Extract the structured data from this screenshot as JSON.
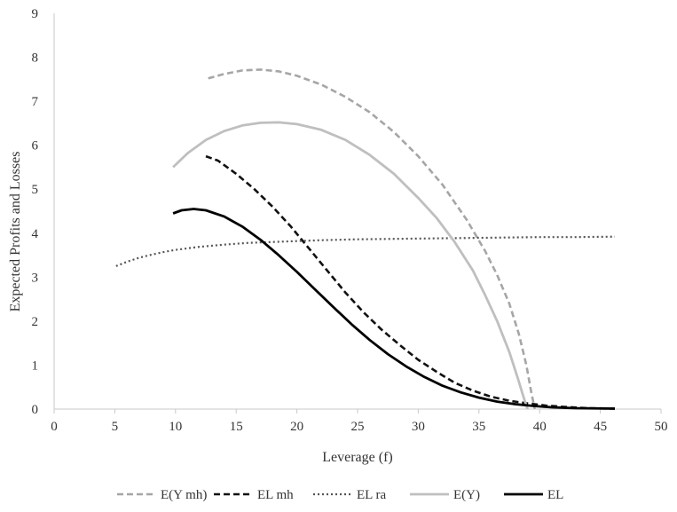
{
  "chart_data": {
    "type": "line",
    "title": "",
    "xlabel": "Leverage (f)",
    "ylabel": "Expected Profits and Losses",
    "xlim": [
      0,
      50
    ],
    "ylim": [
      0,
      9
    ],
    "xticks": [
      0,
      5,
      10,
      15,
      20,
      25,
      30,
      35,
      40,
      45,
      50
    ],
    "yticks": [
      0,
      1,
      2,
      3,
      4,
      5,
      6,
      7,
      8,
      9
    ],
    "grid": false,
    "legend_position": "bottom",
    "series": [
      {
        "name": "E(Y mh)",
        "color": "#a6a6a6",
        "style": "dashed",
        "points": [
          [
            12.7,
            7.52
          ],
          [
            14,
            7.62
          ],
          [
            15.5,
            7.7
          ],
          [
            17,
            7.72
          ],
          [
            18.5,
            7.68
          ],
          [
            20,
            7.58
          ],
          [
            22,
            7.38
          ],
          [
            24,
            7.1
          ],
          [
            26,
            6.75
          ],
          [
            28,
            6.3
          ],
          [
            30,
            5.75
          ],
          [
            32,
            5.1
          ],
          [
            34,
            4.3
          ],
          [
            35.5,
            3.6
          ],
          [
            36.5,
            3.05
          ],
          [
            37.5,
            2.4
          ],
          [
            38.3,
            1.7
          ],
          [
            38.9,
            1.0
          ],
          [
            39.3,
            0.4
          ],
          [
            39.6,
            0.0
          ]
        ]
      },
      {
        "name": "EL mh",
        "color": "#111111",
        "style": "dashed",
        "points": [
          [
            12.5,
            5.75
          ],
          [
            13.5,
            5.65
          ],
          [
            15,
            5.35
          ],
          [
            16.5,
            5.0
          ],
          [
            18,
            4.6
          ],
          [
            19.5,
            4.15
          ],
          [
            21,
            3.65
          ],
          [
            22.5,
            3.15
          ],
          [
            24,
            2.65
          ],
          [
            25.5,
            2.2
          ],
          [
            27,
            1.8
          ],
          [
            28.5,
            1.45
          ],
          [
            30,
            1.12
          ],
          [
            31.5,
            0.85
          ],
          [
            33,
            0.6
          ],
          [
            34.5,
            0.42
          ],
          [
            36,
            0.28
          ],
          [
            37.5,
            0.19
          ],
          [
            39,
            0.13
          ],
          [
            40.5,
            0.08
          ],
          [
            42,
            0.05
          ],
          [
            44,
            0.02
          ],
          [
            46.2,
            0.01
          ]
        ]
      },
      {
        "name": "EL ra",
        "color": "#555555",
        "style": "dotted",
        "points": [
          [
            5.1,
            3.25
          ],
          [
            6,
            3.35
          ],
          [
            7,
            3.44
          ],
          [
            8,
            3.51
          ],
          [
            9,
            3.57
          ],
          [
            10,
            3.62
          ],
          [
            12,
            3.69
          ],
          [
            14,
            3.74
          ],
          [
            16,
            3.78
          ],
          [
            18,
            3.8
          ],
          [
            20,
            3.82
          ],
          [
            22,
            3.84
          ],
          [
            25,
            3.86
          ],
          [
            28,
            3.87
          ],
          [
            31,
            3.88
          ],
          [
            34,
            3.89
          ],
          [
            37,
            3.9
          ],
          [
            40,
            3.91
          ],
          [
            43,
            3.91
          ],
          [
            46.2,
            3.92
          ]
        ]
      },
      {
        "name": "E(Y)",
        "color": "#bfbfbf",
        "style": "solid",
        "points": [
          [
            9.8,
            5.5
          ],
          [
            11,
            5.82
          ],
          [
            12.5,
            6.12
          ],
          [
            14,
            6.32
          ],
          [
            15.5,
            6.45
          ],
          [
            17,
            6.51
          ],
          [
            18.5,
            6.52
          ],
          [
            20,
            6.48
          ],
          [
            22,
            6.35
          ],
          [
            24,
            6.12
          ],
          [
            26,
            5.78
          ],
          [
            28,
            5.35
          ],
          [
            30,
            4.8
          ],
          [
            31.5,
            4.35
          ],
          [
            33,
            3.8
          ],
          [
            34.5,
            3.15
          ],
          [
            35.5,
            2.6
          ],
          [
            36.5,
            2.0
          ],
          [
            37.5,
            1.3
          ],
          [
            38.2,
            0.7
          ],
          [
            38.7,
            0.25
          ],
          [
            39.0,
            0.0
          ]
        ]
      },
      {
        "name": "EL",
        "color": "#000000",
        "style": "solid",
        "points": [
          [
            9.8,
            4.45
          ],
          [
            10.5,
            4.52
          ],
          [
            11.5,
            4.55
          ],
          [
            12.5,
            4.52
          ],
          [
            14,
            4.38
          ],
          [
            15.5,
            4.15
          ],
          [
            17,
            3.85
          ],
          [
            18.5,
            3.5
          ],
          [
            20,
            3.12
          ],
          [
            21.5,
            2.72
          ],
          [
            23,
            2.32
          ],
          [
            24.5,
            1.93
          ],
          [
            26,
            1.57
          ],
          [
            27.5,
            1.25
          ],
          [
            29,
            0.97
          ],
          [
            30.5,
            0.73
          ],
          [
            32,
            0.53
          ],
          [
            33.5,
            0.38
          ],
          [
            35,
            0.26
          ],
          [
            36.5,
            0.17
          ],
          [
            38,
            0.11
          ],
          [
            39.5,
            0.07
          ],
          [
            41,
            0.04
          ],
          [
            43,
            0.02
          ],
          [
            46.2,
            0.01
          ]
        ]
      }
    ]
  }
}
